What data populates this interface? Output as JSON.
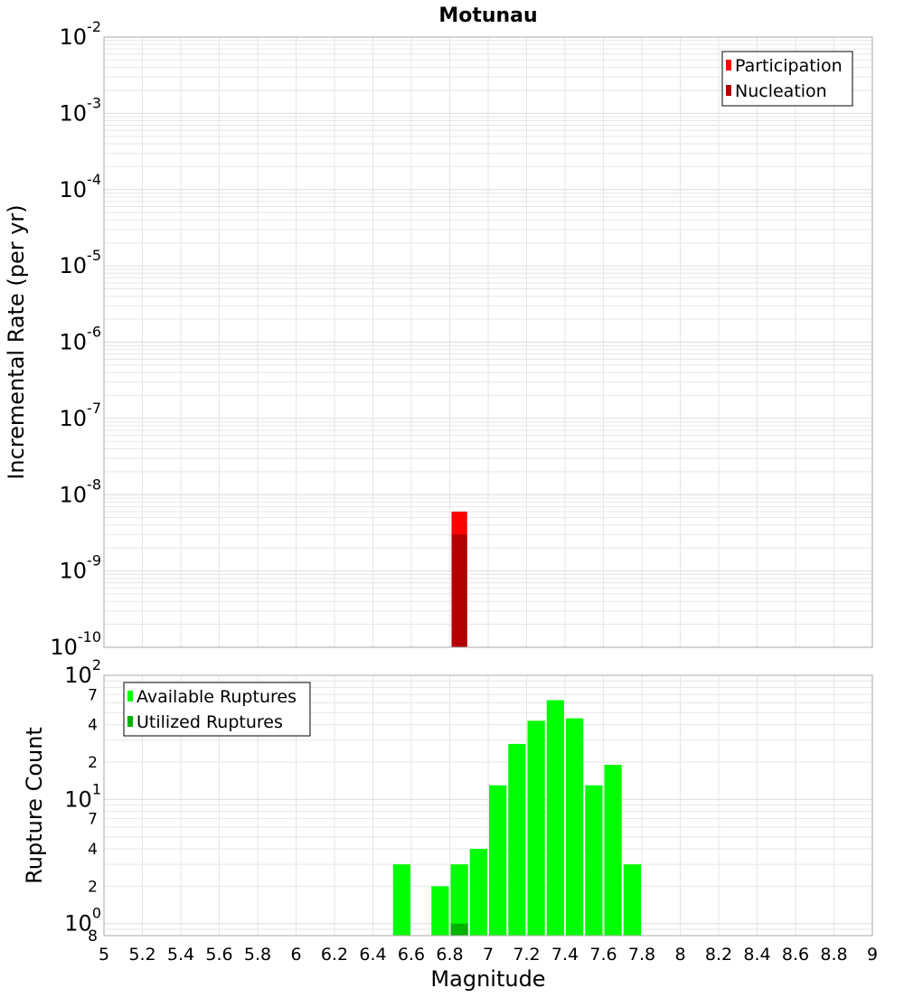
{
  "colors": {
    "participation": "#ff0000",
    "nucleation": "#b20000",
    "available": "#00ff00",
    "utilized": "#00b200",
    "grid": "#e6e6e6",
    "frame": "#aaaaaa"
  },
  "chart_data": [
    {
      "type": "bar",
      "title": "Motunau",
      "xlabel": "",
      "ylabel": "Incremental Rate (per yr)",
      "xlim": [
        5,
        9
      ],
      "ylim": [
        1e-10,
        0.01
      ],
      "yscale": "log",
      "y_tick_labels": [
        {
          "base": "10",
          "exp": "-2",
          "value": 0.01
        },
        {
          "base": "10",
          "exp": "-3",
          "value": 0.001
        },
        {
          "base": "10",
          "exp": "-4",
          "value": 0.0001
        },
        {
          "base": "10",
          "exp": "-5",
          "value": 1e-05
        },
        {
          "base": "10",
          "exp": "-6",
          "value": 1e-06
        },
        {
          "base": "10",
          "exp": "-7",
          "value": 1e-07
        },
        {
          "base": "10",
          "exp": "-8",
          "value": 1e-08
        },
        {
          "base": "10",
          "exp": "-9",
          "value": 1e-09
        },
        {
          "base": "10",
          "exp": "-10",
          "value": 1e-10
        }
      ],
      "grid": true,
      "legend_position": "top-right",
      "series": [
        {
          "name": "Participation",
          "color": "#ff0000",
          "bin_width": 0.1,
          "points": [
            {
              "x": 6.85,
              "y": 6e-09
            }
          ]
        },
        {
          "name": "Nucleation",
          "color": "#b20000",
          "bin_width": 0.1,
          "points": [
            {
              "x": 6.85,
              "y": 3e-09
            }
          ]
        }
      ]
    },
    {
      "type": "bar",
      "xlabel": "Magnitude",
      "ylabel": "Rupture Count",
      "xlim": [
        5,
        9
      ],
      "ylim": [
        0.8,
        100
      ],
      "yscale": "log",
      "x_tick_labels": [
        "5",
        "5.2",
        "5.4",
        "5.6",
        "5.8",
        "6",
        "6.2",
        "6.4",
        "6.6",
        "6.8",
        "7",
        "7.2",
        "7.4",
        "7.6",
        "7.8",
        "8",
        "8.2",
        "8.4",
        "8.6",
        "8.8",
        "9"
      ],
      "y_major_tick_labels": [
        {
          "base": "10",
          "exp": "2",
          "value": 100
        },
        {
          "base": "10",
          "exp": "1",
          "value": 10
        },
        {
          "base": "10",
          "exp": "0",
          "value": 1
        }
      ],
      "y_minor_tick_labels": [
        {
          "label": "7",
          "value": 70
        },
        {
          "label": "4",
          "value": 40
        },
        {
          "label": "2",
          "value": 20
        },
        {
          "label": "7",
          "value": 7
        },
        {
          "label": "4",
          "value": 4
        },
        {
          "label": "2",
          "value": 2
        },
        {
          "label": "8",
          "value": 0.8
        }
      ],
      "grid": true,
      "legend_position": "top-left",
      "series": [
        {
          "name": "Available Ruptures",
          "color": "#00ff00",
          "bin_width": 0.1,
          "points": [
            {
              "x": 6.55,
              "y": 3
            },
            {
              "x": 6.75,
              "y": 2
            },
            {
              "x": 6.85,
              "y": 3
            },
            {
              "x": 6.95,
              "y": 4
            },
            {
              "x": 7.05,
              "y": 13
            },
            {
              "x": 7.15,
              "y": 28
            },
            {
              "x": 7.25,
              "y": 43
            },
            {
              "x": 7.35,
              "y": 63
            },
            {
              "x": 7.45,
              "y": 45
            },
            {
              "x": 7.55,
              "y": 13
            },
            {
              "x": 7.65,
              "y": 19
            },
            {
              "x": 7.75,
              "y": 3
            }
          ]
        },
        {
          "name": "Utilized Ruptures",
          "color": "#00b200",
          "bin_width": 0.1,
          "points": [
            {
              "x": 6.85,
              "y": 1
            }
          ]
        }
      ]
    }
  ]
}
